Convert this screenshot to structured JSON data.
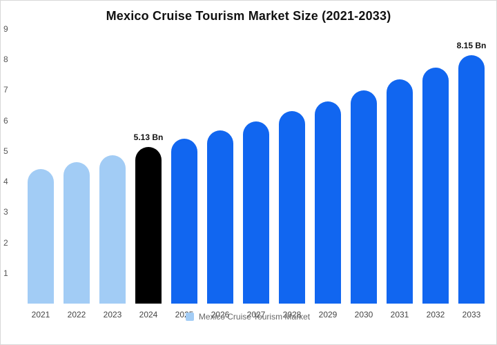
{
  "title": "Mexico Cruise Tourism Market Size (2021-2033)",
  "legend": {
    "label": "Mexico Cruise Tourism Market",
    "swatch_color": "#a2ccf5"
  },
  "colors": {
    "historical_bar": "#a2ccf5",
    "base_year_bar": "#000000",
    "forecast_bar": "#1166f0",
    "title_text": "#111111",
    "axis_text": "#555555"
  },
  "chart_data": {
    "type": "bar",
    "title": "Mexico Cruise Tourism Market Size (2021-2033)",
    "categories": [
      "2021",
      "2022",
      "2023",
      "2024",
      "2025",
      "2026",
      "2027",
      "2028",
      "2029",
      "2030",
      "2031",
      "2032",
      "2033"
    ],
    "values": [
      4.4,
      4.63,
      4.87,
      5.13,
      5.4,
      5.68,
      5.98,
      6.3,
      6.63,
      6.98,
      7.35,
      7.74,
      8.15
    ],
    "bar_colors": [
      "#a2ccf5",
      "#a2ccf5",
      "#a2ccf5",
      "#000000",
      "#1166f0",
      "#1166f0",
      "#1166f0",
      "#1166f0",
      "#1166f0",
      "#1166f0",
      "#1166f0",
      "#1166f0",
      "#1166f0"
    ],
    "annotations": [
      {
        "category": "2024",
        "text": "5.13 Bn"
      },
      {
        "category": "2033",
        "text": "8.15 Bn"
      }
    ],
    "xlabel": "",
    "ylabel": "",
    "ylim": [
      0,
      9
    ],
    "y_ticks": [
      9,
      8,
      7,
      6,
      5,
      4,
      3,
      2,
      1
    ],
    "grid": false,
    "legend_position": "bottom",
    "legend_entries": [
      "Mexico Cruise Tourism Market"
    ]
  }
}
